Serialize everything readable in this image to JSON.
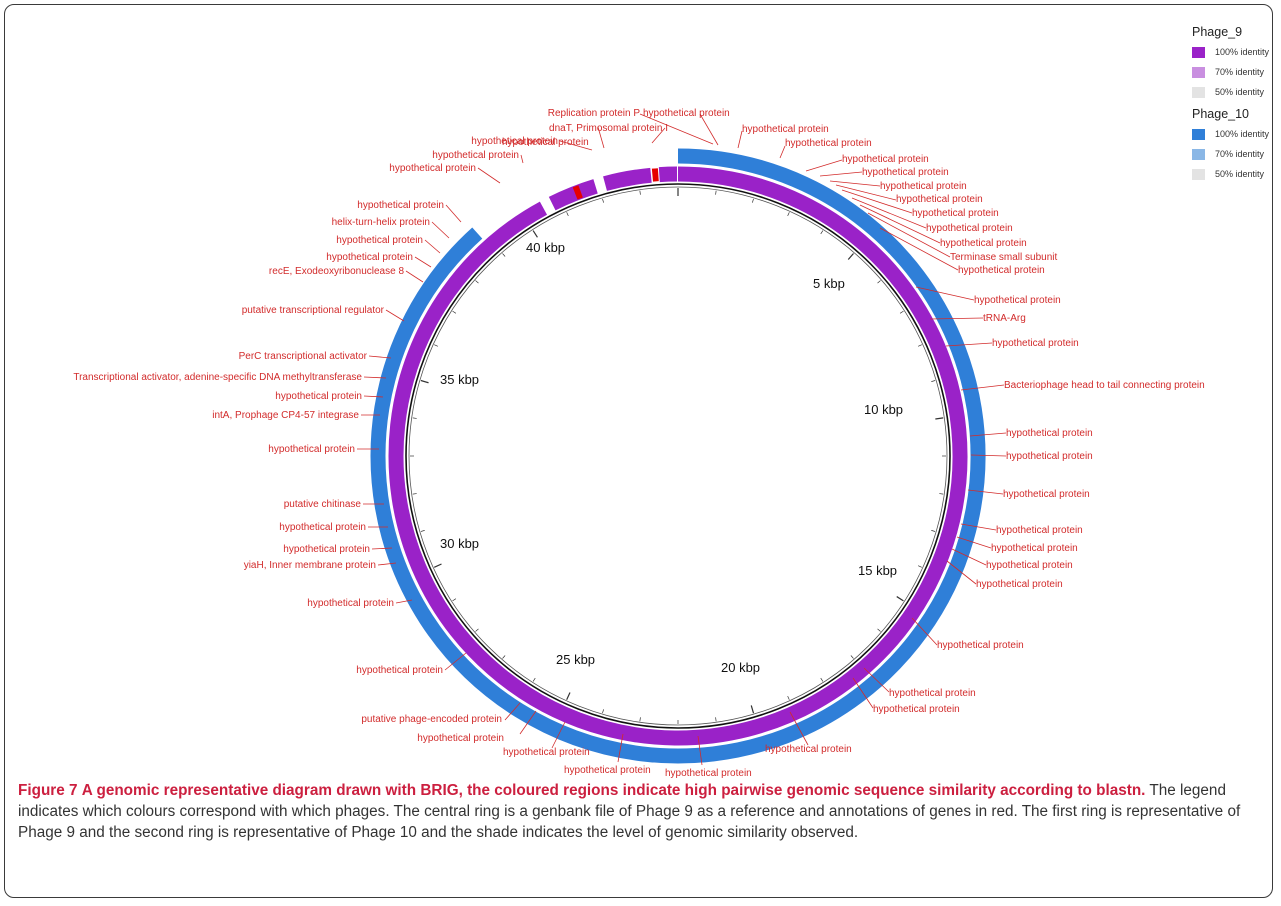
{
  "figure": {
    "label": "Figure 7",
    "caption_title": "A genomic representative diagram drawn with BRIG, the coloured regions indicate high pairwise genomic sequence similarity according to blastn.",
    "caption_body": "The legend indicates which colours correspond with which phages. The central ring is a genbank file of Phage 9 as a reference and annotations of genes in red. The first ring is representative of Phage 9 and the second ring is representative of Phage 10 and the shade indicates the level of genomic similarity observed."
  },
  "legend": [
    {
      "title": "Phage_9",
      "items": [
        {
          "label": "100% identity",
          "color": "#9a22c8"
        },
        {
          "label": "70% identity",
          "color": "#c98fe0"
        },
        {
          "label": "50% identity",
          "color": "#e3e3e3"
        }
      ]
    },
    {
      "title": "Phage_10",
      "items": [
        {
          "label": "100% identity",
          "color": "#2f7fd8"
        },
        {
          "label": "70% identity",
          "color": "#8ab7e6"
        },
        {
          "label": "50% identity",
          "color": "#e3e3e3"
        }
      ]
    }
  ],
  "genome": {
    "length_kbp": 44,
    "tick_labels": [
      "5 kbp",
      "10 kbp",
      "15 kbp",
      "20 kbp",
      "25 kbp",
      "30 kbp",
      "35 kbp",
      "40 kbp"
    ],
    "colors": {
      "phage9_ring": "#9a22c8",
      "phage10_ring": "#2f7fd8",
      "gene_marker": "#e60000",
      "annotation": "#d22b2b"
    }
  },
  "annotations": [
    "Replication protein P",
    "hypothetical protein",
    "hypothetical protein",
    "hypothetical protein",
    "hypothetical protein",
    "hypothetical protein",
    "hypothetical protein",
    "hypothetical protein",
    "hypothetical protein",
    "hypothetical protein",
    "hypothetical protein",
    "Terminase small subunit",
    "hypothetical protein",
    "hypothetical protein",
    "tRNA-Arg",
    "hypothetical protein",
    "Bacteriophage head to tail connecting protein",
    "hypothetical protein",
    "hypothetical protein",
    "hypothetical protein",
    "hypothetical protein",
    "hypothetical protein",
    "hypothetical protein",
    "hypothetical protein",
    "hypothetical protein",
    "hypothetical protein",
    "hypothetical protein",
    "hypothetical protein",
    "hypothetical protein",
    "hypothetical protein",
    "hypothetical protein",
    "hypothetical protein",
    "putative phage-encoded protein",
    "hypothetical protein",
    "hypothetical protein",
    "yiaH, Inner membrane protein",
    "hypothetical protein",
    "hypothetical protein",
    "putative chitinase",
    "hypothetical protein",
    "intA, Prophage CP4-57 integrase",
    "hypothetical protein",
    "Transcriptional activator, adenine-specific DNA methyltransferase",
    "PerC transcriptional activator",
    "putative transcriptional regulator",
    "recE, Exodeoxyribonuclease 8",
    "hypothetical protein",
    "hypothetical protein",
    "helix-turn-helix protein",
    "hypothetical protein",
    "hypothetical protein",
    "hypothetical protein",
    "hypothetical protein",
    "hypothetical protein",
    "dnaT, Primosomal protein I"
  ]
}
